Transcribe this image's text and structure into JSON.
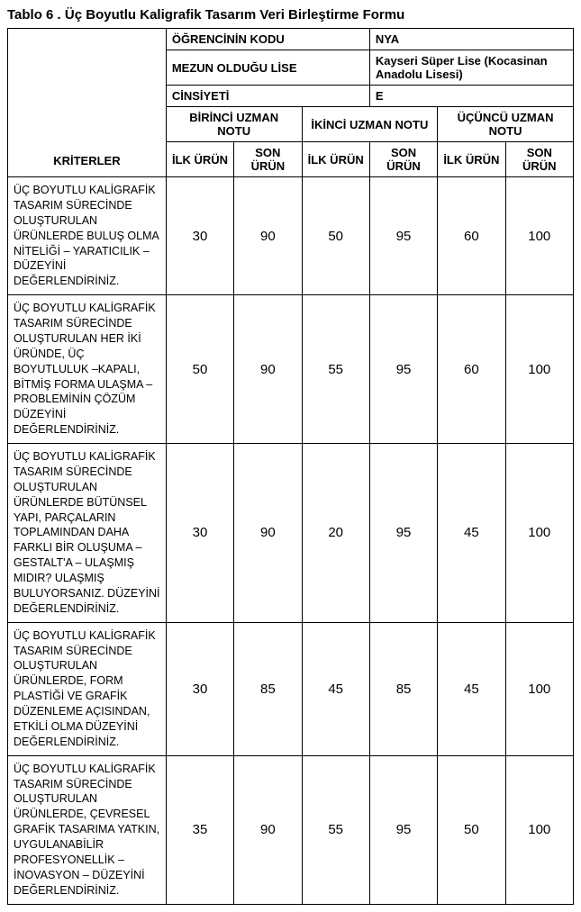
{
  "title": "Tablo 6 . Üç Boyutlu Kaligrafik Tasarım Veri Birleştirme Formu",
  "header": {
    "student_code_label": "ÖĞRENCİNİN KODU",
    "student_code_value": "NYA",
    "school_label": "MEZUN OLDUĞU LİSE",
    "school_value": "Kayseri Süper Lise (Kocasinan Anadolu Lisesi)",
    "gender_label": "CİNSİYETİ",
    "gender_value": "E",
    "expert1": "BİRİNCİ UZMAN NOTU",
    "expert2": "İKİNCİ UZMAN NOTU",
    "expert3": "ÜÇÜNCÜ UZMAN NOTU",
    "first_prod": "İLK ÜRÜN",
    "last_prod": "SON ÜRÜN",
    "criteria_label": "KRİTERLER"
  },
  "rows": [
    {
      "criterion": "ÜÇ BOYUTLU KALİGRAFİK TASARIM SÜRECİNDE OLUŞTURULAN ÜRÜNLERDE BULUŞ OLMA NİTELİĞİ – YARATICILIK – DÜZEYİNİ DEĞERLENDİRİNİZ.",
      "v": [
        "30",
        "90",
        "50",
        "95",
        "60",
        "100"
      ]
    },
    {
      "criterion": "ÜÇ BOYUTLU KALİGRAFİK TASARIM SÜRECİNDE OLUŞTURULAN HER İKİ ÜRÜNDE, ÜÇ BOYUTLULUK –KAPALI, BİTMİŞ FORMA ULAŞMA – PROBLEMİNİN ÇÖZÜM DÜZEYİNİ DEĞERLENDİRİNİZ.",
      "v": [
        "50",
        "90",
        "55",
        "95",
        "60",
        "100"
      ]
    },
    {
      "criterion": "ÜÇ BOYUTLU KALİGRAFİK TASARIM SÜRECİNDE OLUŞTURULAN ÜRÜNLERDE BÜTÜNSEL YAPI, PARÇALARIN TOPLAMINDAN DAHA FARKLI BİR OLUŞUMA – GESTALT'A – ULAŞMIŞ MIDIR? ULAŞMIŞ BULUYORSANIZ. DÜZEYİNİ DEĞERLENDİRİNİZ.",
      "v": [
        "30",
        "90",
        "20",
        "95",
        "45",
        "100"
      ]
    },
    {
      "criterion": "ÜÇ BOYUTLU KALİGRAFİK TASARIM SÜRECİNDE OLUŞTURULAN ÜRÜNLERDE, FORM PLASTİĞİ VE GRAFİK DÜZENLEME AÇISINDAN, ETKİLİ OLMA DÜZEYİNİ DEĞERLENDİRİNİZ.",
      "v": [
        "30",
        "85",
        "45",
        "85",
        "45",
        "100"
      ]
    },
    {
      "criterion": "ÜÇ BOYUTLU KALİGRAFİK TASARIM SÜRECİNDE OLUŞTURULAN ÜRÜNLERDE, ÇEVRESEL GRAFİK TASARIMA YATKIN, UYGULANABİLİR PROFESYONELLİK – İNOVASYON – DÜZEYİNİ DEĞERLENDİRİNİZ.",
      "v": [
        "35",
        "90",
        "55",
        "95",
        "50",
        "100"
      ]
    }
  ]
}
